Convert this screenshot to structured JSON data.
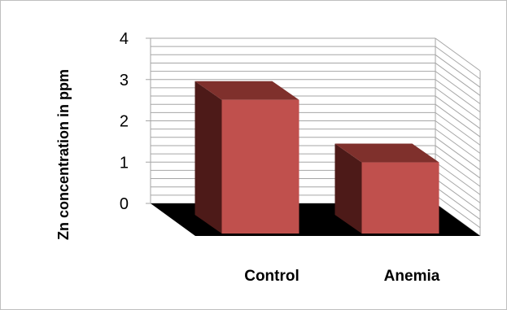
{
  "chart_data": {
    "type": "bar",
    "style": "3d-column",
    "categories": [
      "Control",
      "Anemia"
    ],
    "values": [
      3.1,
      1.65
    ],
    "ylabel": "Zn  concentration in ppm",
    "xlabel": "",
    "ylim": [
      0,
      4
    ],
    "yticks": [
      0,
      1,
      2,
      3,
      4
    ],
    "grid": true,
    "legend": "none",
    "colors": {
      "bar_front": "#c0504d",
      "bar_top": "#7f302c",
      "bar_side": "#4d1a18",
      "floor": "#000000",
      "grid": "#a6a6a6"
    }
  }
}
